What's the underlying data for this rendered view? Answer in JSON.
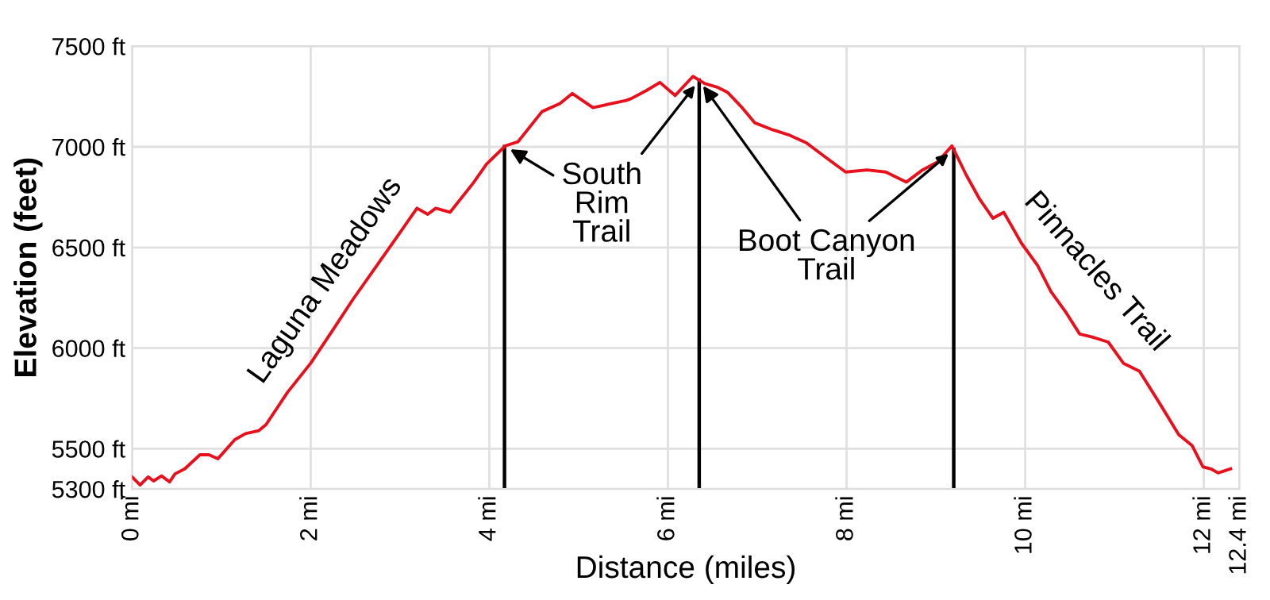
{
  "chart_data": {
    "type": "line",
    "xlabel": "Distance (miles)",
    "ylabel": "Elevation (feet)",
    "xlim": [
      0,
      12.4
    ],
    "ylim": [
      5300,
      7500
    ],
    "xticks": [
      {
        "value": 0,
        "label": "0 mi"
      },
      {
        "value": 2,
        "label": "2 mi"
      },
      {
        "value": 4,
        "label": "4 mi"
      },
      {
        "value": 6,
        "label": "6 mi"
      },
      {
        "value": 8,
        "label": "8 mi"
      },
      {
        "value": 10,
        "label": "10 mi"
      },
      {
        "value": 12,
        "label": "12 mi"
      },
      {
        "value": 12.4,
        "label": "12.4 mi"
      }
    ],
    "yticks": [
      {
        "value": 5300,
        "label": "5300 ft"
      },
      {
        "value": 5500,
        "label": "5500 ft"
      },
      {
        "value": 6000,
        "label": "6000 ft"
      },
      {
        "value": 6500,
        "label": "6500 ft"
      },
      {
        "value": 7000,
        "label": "7000 ft"
      },
      {
        "value": 7500,
        "label": "7500 ft"
      }
    ],
    "grid": true,
    "legend": false,
    "marker": "none",
    "line_style": "solid",
    "series": [
      {
        "color": "#e8101c",
        "x": [
          0,
          0.09,
          0.18,
          0.24,
          0.33,
          0.42,
          0.48,
          0.59,
          0.76,
          0.86,
          0.96,
          1.15,
          1.27,
          1.42,
          1.5,
          1.74,
          2.0,
          2.24,
          2.47,
          2.74,
          2.97,
          3.19,
          3.31,
          3.4,
          3.56,
          3.82,
          3.97,
          4.18,
          4.32,
          4.59,
          4.79,
          4.93,
          5.16,
          5.53,
          5.59,
          5.76,
          5.91,
          6.08,
          6.28,
          6.41,
          6.56,
          6.67,
          6.82,
          6.97,
          7.17,
          7.35,
          7.55,
          7.79,
          7.99,
          8.23,
          8.44,
          8.67,
          8.85,
          9.02,
          9.18,
          9.34,
          9.49,
          9.64,
          9.76,
          9.96,
          10.14,
          10.29,
          10.46,
          10.61,
          10.75,
          10.93,
          11.1,
          11.28,
          11.52,
          11.72,
          11.87,
          11.99,
          12.08,
          12.16,
          12.3
        ],
        "values": [
          5360,
          5320,
          5360,
          5340,
          5365,
          5335,
          5375,
          5400,
          5470,
          5470,
          5450,
          5545,
          5575,
          5590,
          5620,
          5780,
          5925,
          6085,
          6240,
          6410,
          6555,
          6695,
          6665,
          6695,
          6675,
          6820,
          6915,
          7005,
          7025,
          7175,
          7215,
          7265,
          7195,
          7230,
          7240,
          7280,
          7320,
          7255,
          7350,
          7315,
          7295,
          7270,
          7200,
          7120,
          7085,
          7060,
          7020,
          6940,
          6875,
          6885,
          6875,
          6825,
          6885,
          6925,
          7005,
          6860,
          6740,
          6645,
          6675,
          6520,
          6410,
          6280,
          6175,
          6070,
          6055,
          6030,
          5925,
          5885,
          5715,
          5570,
          5515,
          5410,
          5400,
          5380,
          5400
        ]
      }
    ],
    "ref_lines": [
      {
        "axis": "x",
        "value": 4.17,
        "color": "#000000"
      },
      {
        "axis": "x",
        "value": 6.35,
        "color": "#000000"
      },
      {
        "axis": "x",
        "value": 9.2,
        "color": "#000000"
      }
    ],
    "annotations": [
      "Laguna Meadows",
      {
        "text": "South\nRim\nTrail",
        "x": 4.17,
        "y": 7005
      },
      {
        "text": "Boot Canyon\nTrail",
        "x": 6.35,
        "y": 7330
      },
      "Pinnacles Trail"
    ]
  }
}
